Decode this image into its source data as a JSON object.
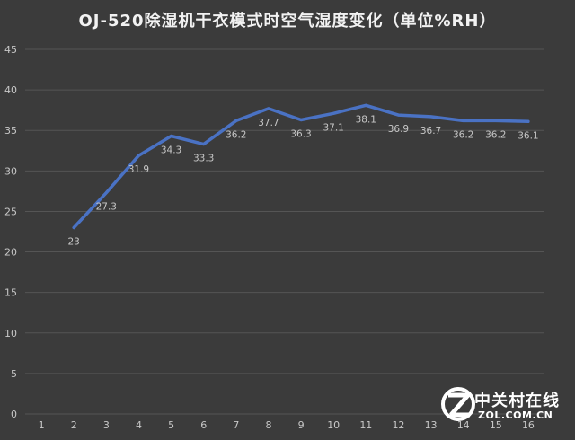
{
  "chart_data": {
    "type": "line",
    "title": "OJ-520除湿机干衣模式时空气湿度变化（单位%RH）",
    "xlabel": "",
    "ylabel": "",
    "categories": [
      1,
      2,
      3,
      4,
      5,
      6,
      7,
      8,
      9,
      10,
      11,
      12,
      13,
      14,
      15,
      16
    ],
    "series": [
      {
        "points": [
          {
            "x": 2,
            "y": 23,
            "label": "23"
          },
          {
            "x": 3,
            "y": 27.3,
            "label": "27.3"
          },
          {
            "x": 4,
            "y": 31.9,
            "label": "31.9"
          },
          {
            "x": 5,
            "y": 34.3,
            "label": "34.3"
          },
          {
            "x": 6,
            "y": 33.3,
            "label": "33.3"
          },
          {
            "x": 7,
            "y": 36.2,
            "label": "36.2"
          },
          {
            "x": 8,
            "y": 37.7,
            "label": "37.7"
          },
          {
            "x": 9,
            "y": 36.3,
            "label": "36.3"
          },
          {
            "x": 10,
            "y": 37.1,
            "label": "37.1"
          },
          {
            "x": 11,
            "y": 38.1,
            "label": "38.1"
          },
          {
            "x": 12,
            "y": 36.9,
            "label": "36.9"
          },
          {
            "x": 13,
            "y": 36.7,
            "label": "36.7"
          },
          {
            "x": 14,
            "y": 36.2,
            "label": "36.2"
          },
          {
            "x": 15,
            "y": 36.2,
            "label": "36.2"
          },
          {
            "x": 16,
            "y": 36.1,
            "label": "36.1"
          }
        ]
      }
    ],
    "ylim": [
      0,
      45
    ],
    "yticks": [
      0,
      5,
      10,
      15,
      20,
      25,
      30,
      35,
      40,
      45
    ],
    "grid": true,
    "legend": "none",
    "colors": {
      "background": "#3b3b3b",
      "line": "#4a72c4",
      "grid": "#555555",
      "text": "#c8c8c8"
    }
  },
  "watermark": {
    "text_cn": "中关村在线",
    "text_en": "ZOL.COM.CN"
  }
}
